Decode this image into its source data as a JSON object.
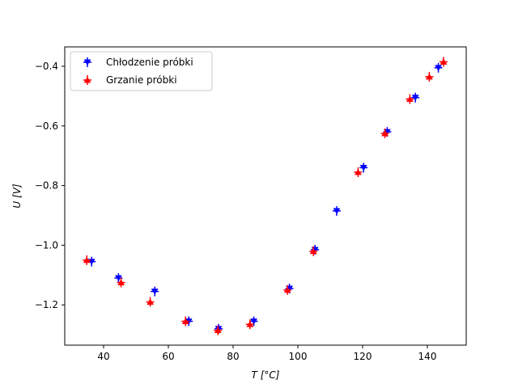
{
  "chart_data": {
    "type": "scatter",
    "title": "",
    "xlabel": "T [°C]",
    "ylabel": "U [V]",
    "xlim": [
      28,
      152
    ],
    "ylim": [
      -1.335,
      -0.335
    ],
    "x_ticks": [
      40,
      60,
      80,
      100,
      120,
      140
    ],
    "x_tick_labels": [
      "40",
      "60",
      "80",
      "100",
      "120",
      "140"
    ],
    "y_ticks": [
      -1.2,
      -1.0,
      -0.8,
      -0.6,
      -0.4
    ],
    "y_tick_labels": [
      "−1.2",
      "−1.0",
      "−0.8",
      "−0.6",
      "−0.4"
    ],
    "grid": false,
    "legend_position": "top-left",
    "series": [
      {
        "name": "Chłodzenie próbki",
        "color": "#0000ff",
        "marker": "triangle-down",
        "x": [
          36.3,
          44.6,
          55.8,
          66.3,
          75.5,
          86.4,
          97.4,
          105.3,
          112.0,
          120.3,
          127.6,
          136.3,
          143.4
        ],
        "y": [
          -1.055,
          -1.11,
          -1.155,
          -1.255,
          -1.28,
          -1.255,
          -1.145,
          -1.015,
          -0.885,
          -0.74,
          -0.62,
          -0.505,
          -0.405
        ]
      },
      {
        "name": "Grzanie próbki",
        "color": "#ff0000",
        "marker": "triangle-up",
        "x": [
          34.8,
          45.4,
          54.4,
          65.3,
          75.3,
          85.2,
          96.8,
          104.8,
          118.6,
          126.9,
          134.6,
          140.6,
          145.0
        ],
        "y": [
          -1.05,
          -1.125,
          -1.19,
          -1.255,
          -1.285,
          -1.265,
          -1.15,
          -1.02,
          -0.755,
          -0.625,
          -0.51,
          -0.435,
          -0.385
        ]
      }
    ]
  },
  "colors": {
    "axes": "#000000",
    "background": "#ffffff",
    "legend_border": "#cccccc"
  }
}
